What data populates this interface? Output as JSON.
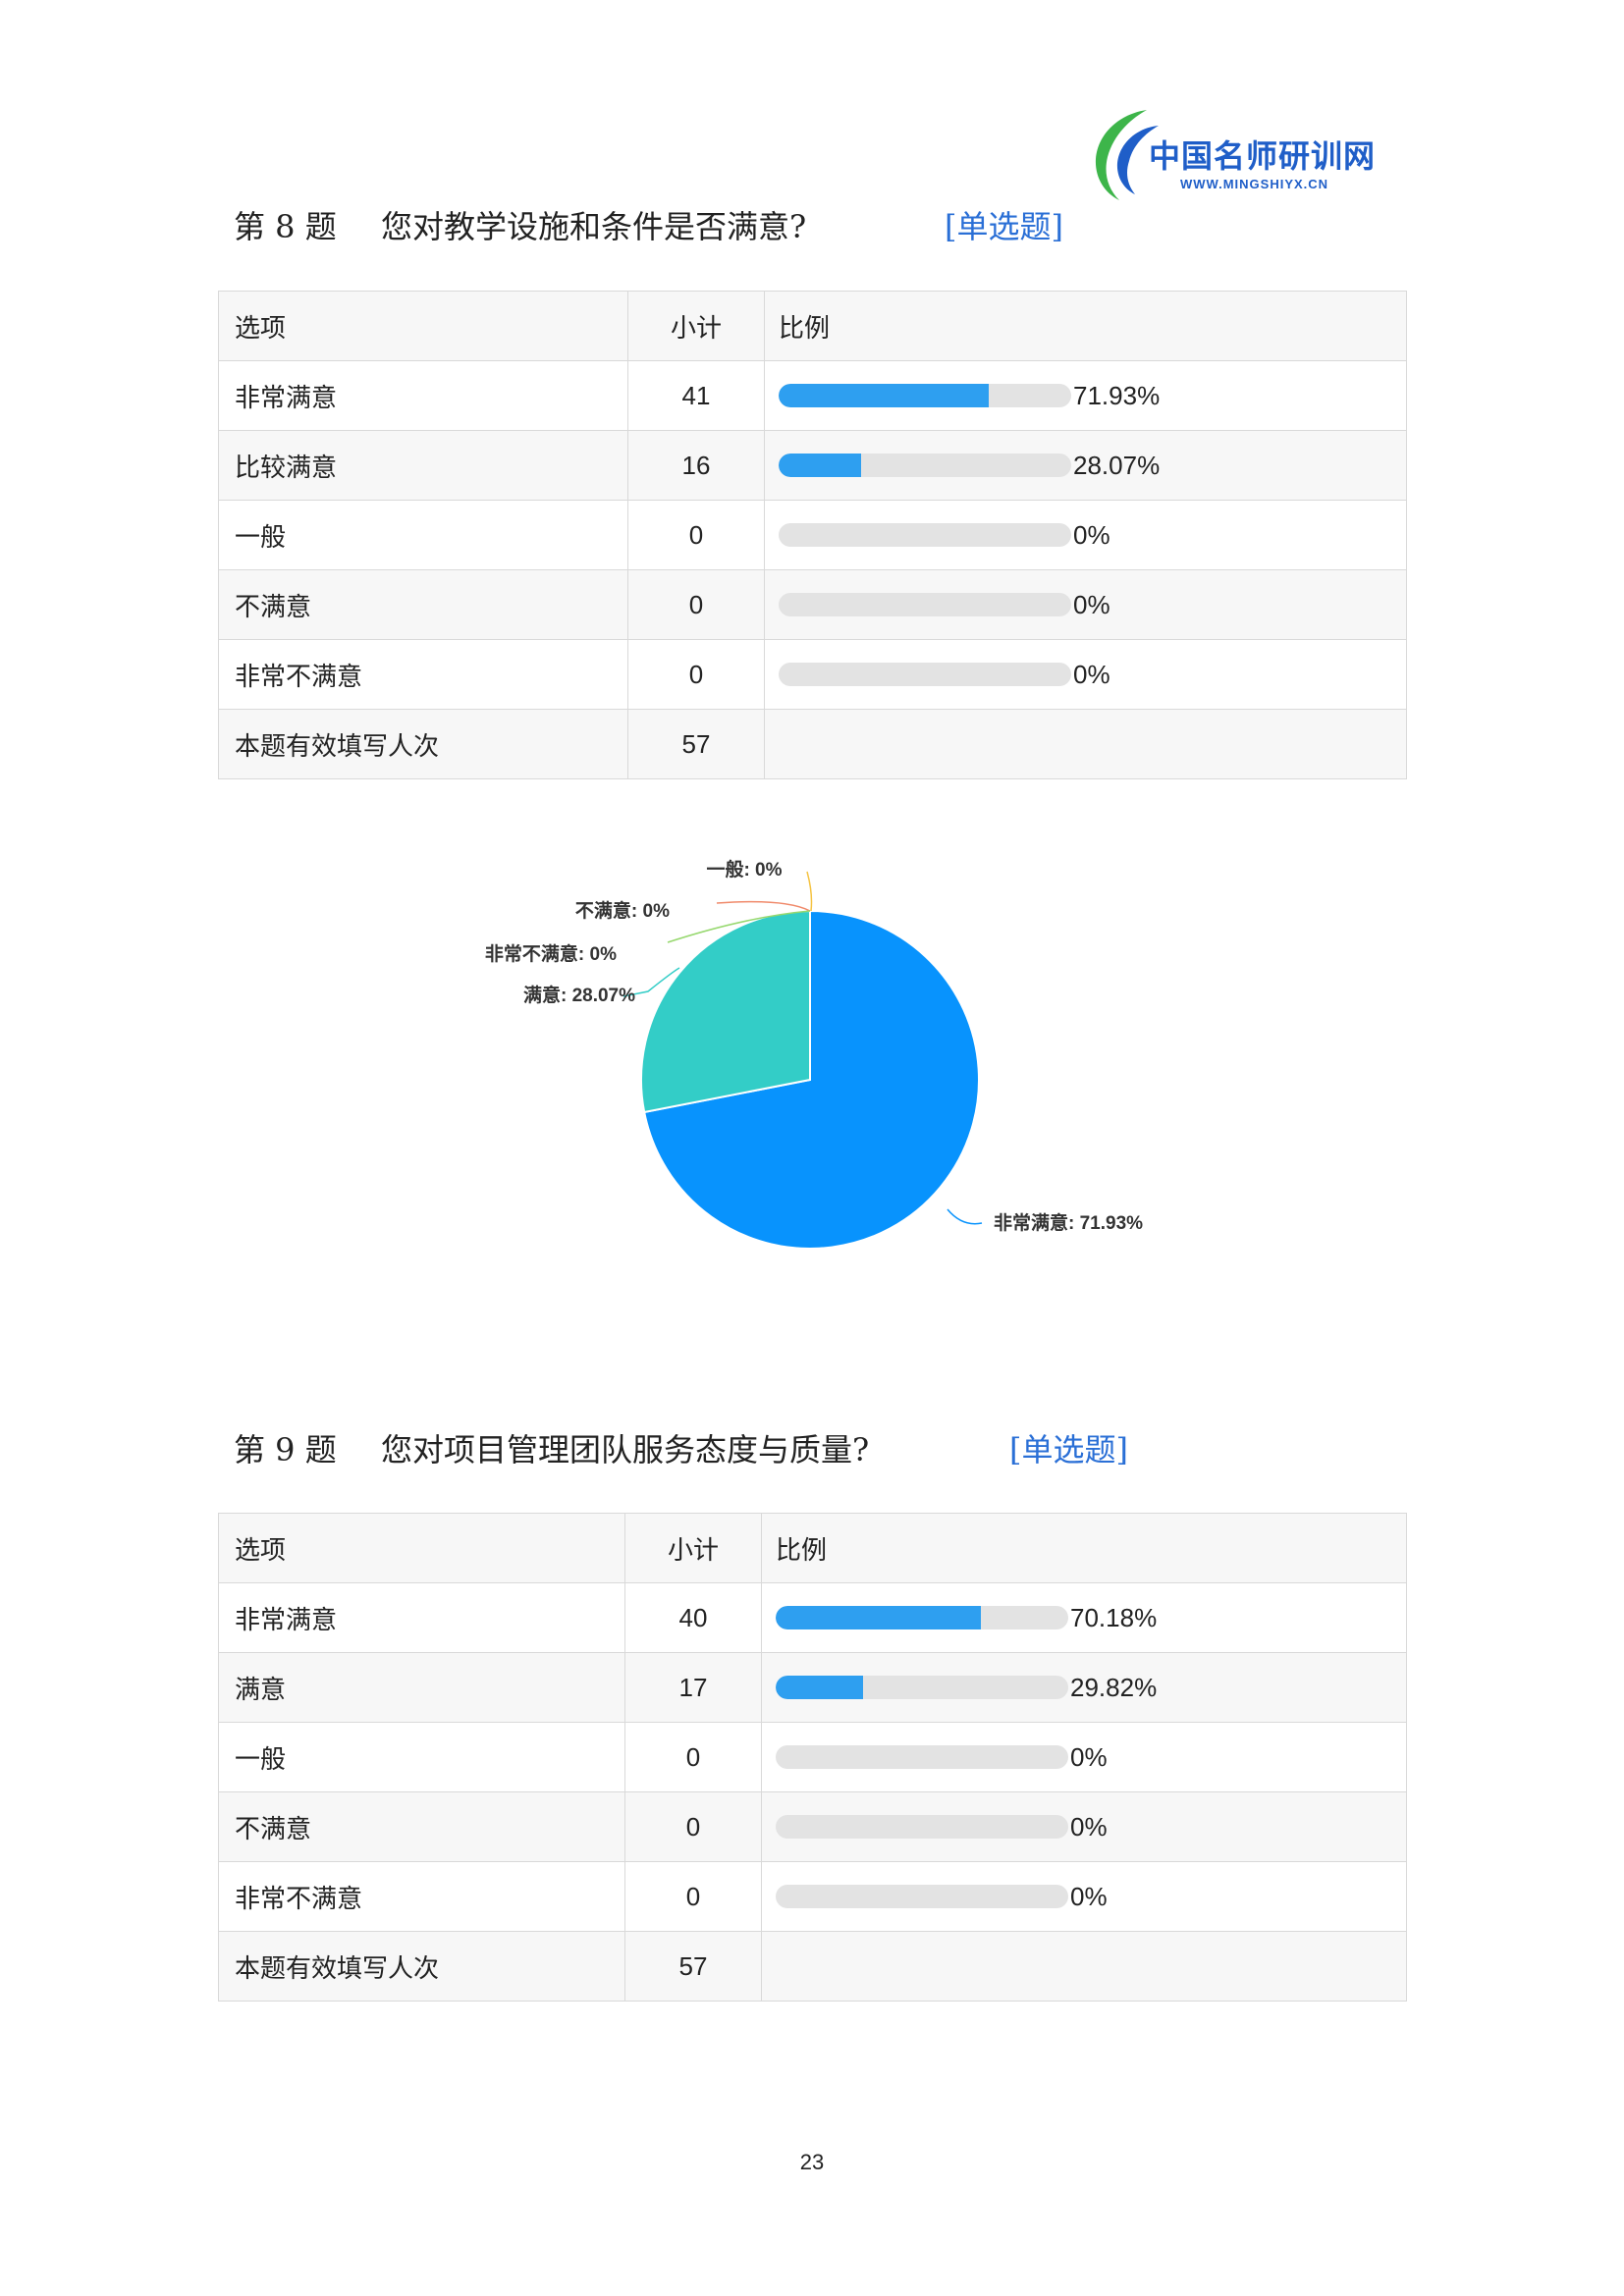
{
  "logo": {
    "name": "中国名师研训网",
    "url": "WWW.MINGSHIYX.CN"
  },
  "q8": {
    "number": "第 8 题",
    "title": "您对教学设施和条件是否满意?",
    "type": "[单选题]",
    "headers": {
      "option": "选项",
      "count": "小计",
      "ratio": "比例"
    },
    "rows": [
      {
        "label": "非常满意",
        "count": "41",
        "percent": 71.93,
        "percent_text": "71.93%"
      },
      {
        "label": "比较满意",
        "count": "16",
        "percent": 28.07,
        "percent_text": "28.07%"
      },
      {
        "label": "一般",
        "count": "0",
        "percent": 0,
        "percent_text": "0%"
      },
      {
        "label": "不满意",
        "count": "0",
        "percent": 0,
        "percent_text": "0%"
      },
      {
        "label": "非常不满意",
        "count": "0",
        "percent": 0,
        "percent_text": "0%"
      }
    ],
    "total": {
      "label": "本题有效填写人次",
      "count": "57"
    }
  },
  "chart_data": {
    "type": "pie",
    "categories": [
      "非常满意",
      "满意",
      "一般",
      "不满意",
      "非常不满意"
    ],
    "values": [
      71.93,
      28.07,
      0,
      0,
      0
    ],
    "labels": [
      "非常满意: 71.93%",
      "满意: 28.07%",
      "一般: 0%",
      "不满意: 0%",
      "非常不满意: 0%"
    ],
    "colors": [
      "#0893fd",
      "#33cdc7",
      "#f5c342",
      "#f08a6b",
      "#96d86e"
    ]
  },
  "q9": {
    "number": "第 9 题",
    "title": "您对项目管理团队服务态度与质量?",
    "type": "[单选题]",
    "headers": {
      "option": "选项",
      "count": "小计",
      "ratio": "比例"
    },
    "rows": [
      {
        "label": "非常满意",
        "count": "40",
        "percent": 70.18,
        "percent_text": "70.18%"
      },
      {
        "label": "满意",
        "count": "17",
        "percent": 29.82,
        "percent_text": "29.82%"
      },
      {
        "label": "一般",
        "count": "0",
        "percent": 0,
        "percent_text": "0%"
      },
      {
        "label": "不满意",
        "count": "0",
        "percent": 0,
        "percent_text": "0%"
      },
      {
        "label": "非常不满意",
        "count": "0",
        "percent": 0,
        "percent_text": "0%"
      }
    ],
    "total": {
      "label": "本题有效填写人次",
      "count": "57"
    }
  },
  "page_number": "23",
  "colors": {
    "bar_fill": "#2e9ff0",
    "bar_track": "#e3e3e3",
    "link": "#2a6fd6"
  }
}
